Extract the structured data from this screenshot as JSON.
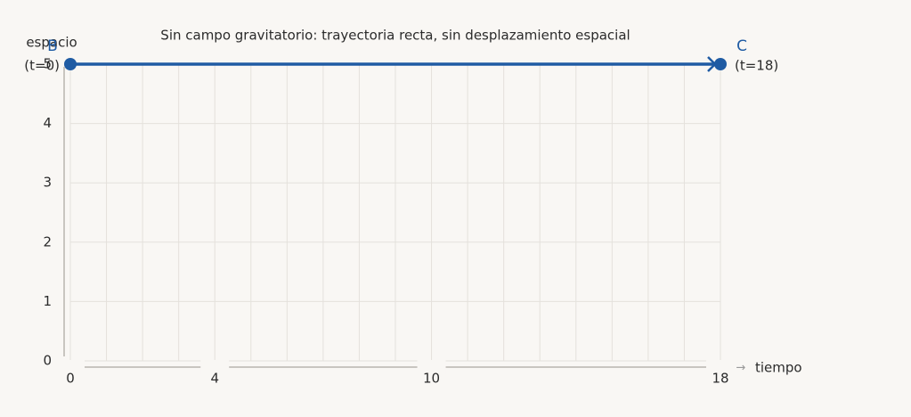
{
  "chart_data": {
    "type": "line",
    "title": "Sin campo gravitatorio: trayectoria recta, sin desplazamiento espacial",
    "x_label": "tiempo",
    "y_label": "espacio",
    "x": [
      0,
      18
    ],
    "series": [
      {
        "values": [
          5,
          5
        ],
        "color": "#1f5ba3"
      }
    ],
    "point_labels": [
      {
        "name": "B",
        "time": "(t=0)"
      },
      {
        "name": "C",
        "time": "(t=18)"
      }
    ],
    "xlim": [
      0,
      18
    ],
    "xticks": [
      0,
      4,
      10,
      18
    ],
    "ylim": [
      0,
      5
    ],
    "yticks": [
      0,
      1,
      2,
      3,
      4,
      5
    ],
    "grid": true
  }
}
